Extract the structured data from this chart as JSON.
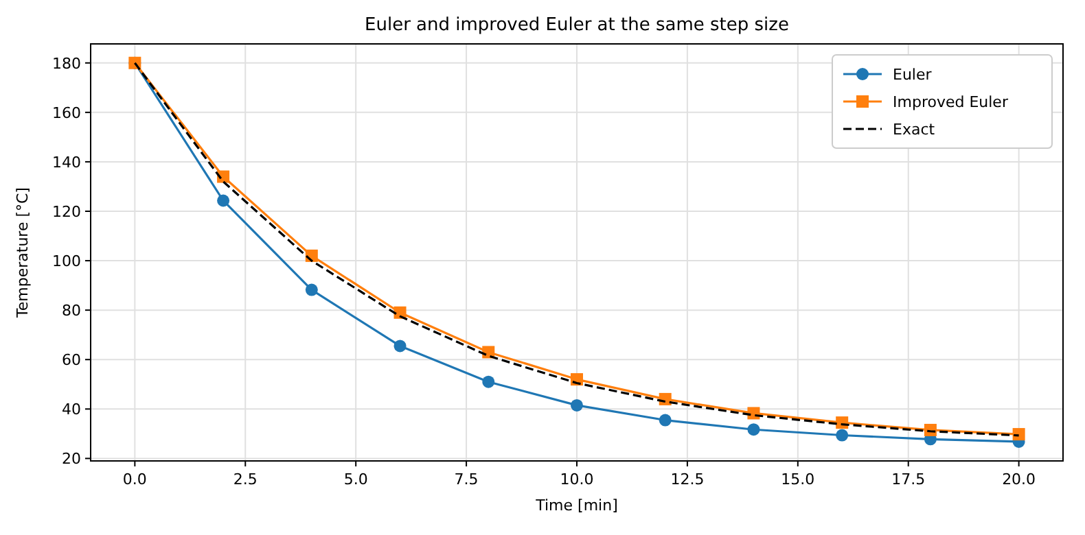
{
  "chart_data": {
    "type": "line",
    "title": "Euler and improved Euler at the same step size",
    "xlabel": "Time [min]",
    "ylabel": "Temperature [°C]",
    "x": [
      0,
      2,
      4,
      6,
      8,
      10,
      12,
      14,
      16,
      18,
      20
    ],
    "series": [
      {
        "name": "Euler",
        "color": "#1f77b4",
        "marker": "circle",
        "line_style": "solid",
        "values": [
          180,
          124.3,
          88.2,
          65.5,
          51,
          41.5,
          35.5,
          31.7,
          29.4,
          27.8,
          26.8
        ]
      },
      {
        "name": "Improved Euler",
        "color": "#ff7f0e",
        "marker": "square",
        "line_style": "solid",
        "values": [
          180,
          134,
          102,
          79,
          63,
          52,
          44,
          38.3,
          34.5,
          31.5,
          29.8
        ]
      },
      {
        "name": "Exact",
        "color": "#000000",
        "marker": "none",
        "line_style": "dashed",
        "values": [
          180,
          132,
          100,
          77.5,
          61.5,
          50.5,
          43,
          37.5,
          33.8,
          31,
          29.3
        ]
      }
    ],
    "xlim": [
      -1,
      21
    ],
    "xticks": [
      {
        "value": 0,
        "label": "0.0"
      },
      {
        "value": 2.5,
        "label": "2.5"
      },
      {
        "value": 5,
        "label": "5.0"
      },
      {
        "value": 7.5,
        "label": "7.5"
      },
      {
        "value": 10,
        "label": "10.0"
      },
      {
        "value": 12.5,
        "label": "12.5"
      },
      {
        "value": 15,
        "label": "15.0"
      },
      {
        "value": 17.5,
        "label": "17.5"
      },
      {
        "value": 20,
        "label": "20.0"
      }
    ],
    "ylim": [
      19,
      187.7
    ],
    "yticks": [
      20,
      40,
      60,
      80,
      100,
      120,
      140,
      160,
      180
    ],
    "grid": true,
    "legend": "top right"
  }
}
